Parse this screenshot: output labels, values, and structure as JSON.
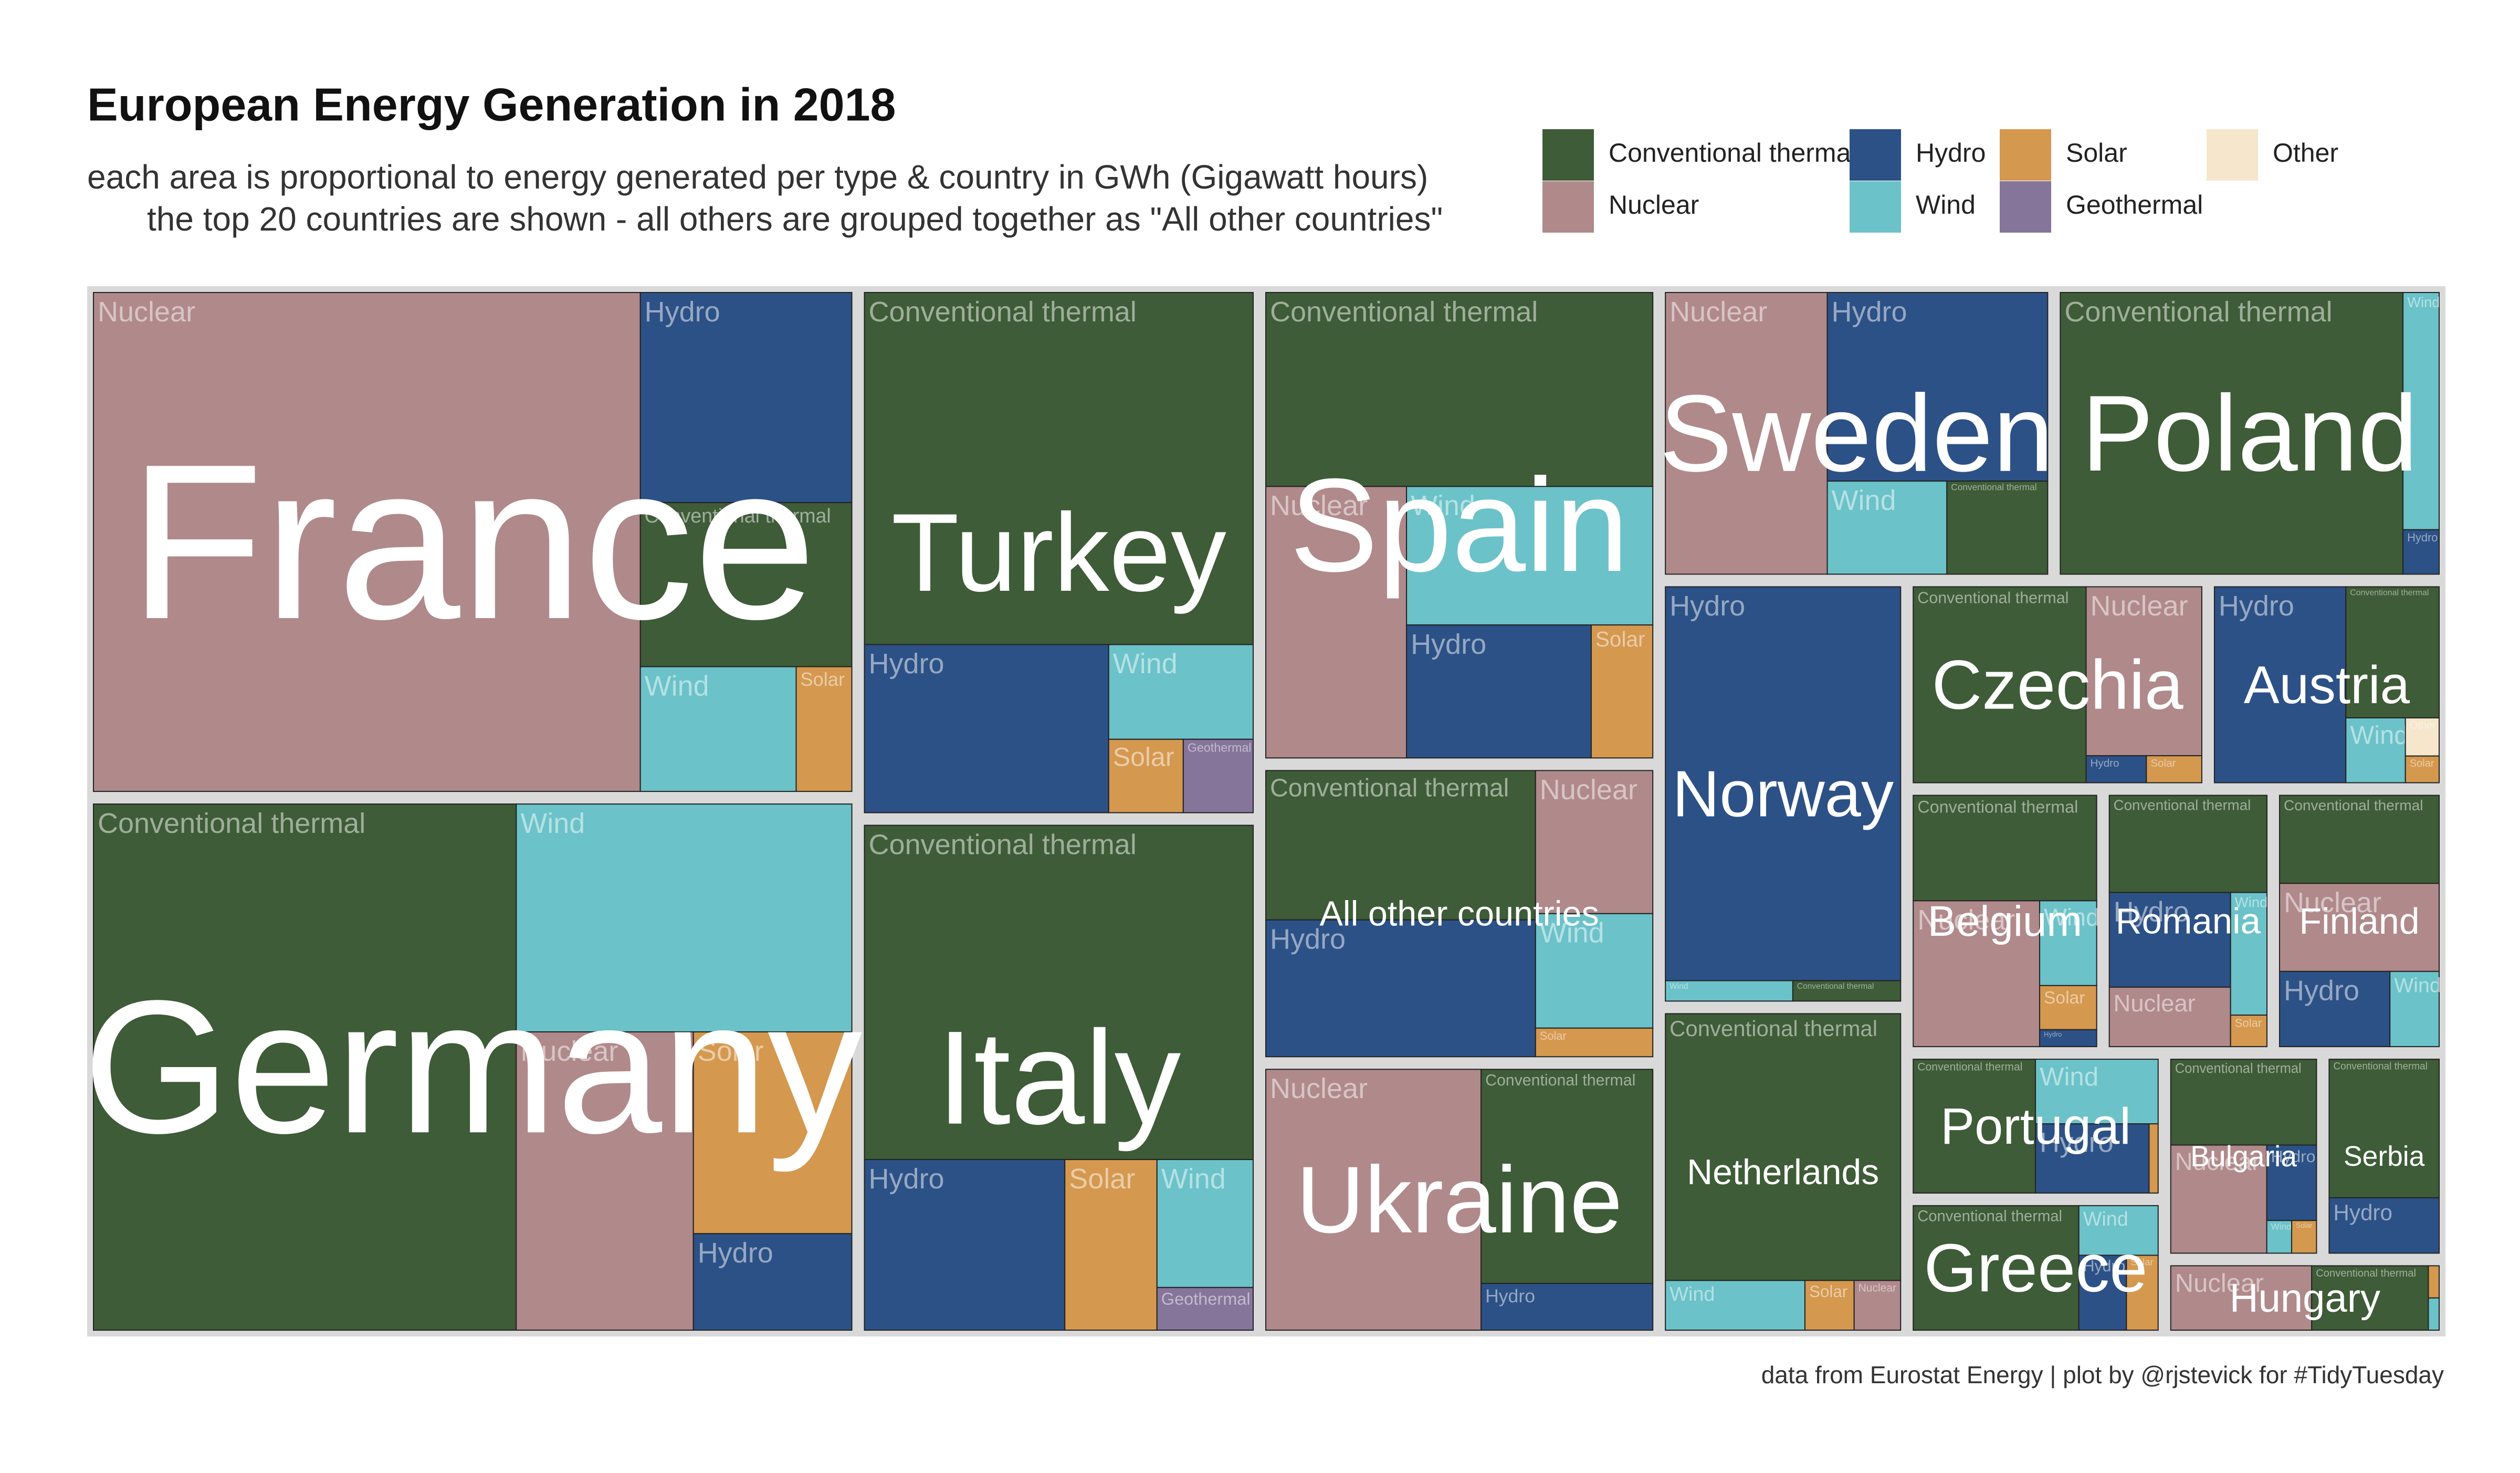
{
  "chart_data": {
    "type": "treemap",
    "title": "European Energy Generation in 2018",
    "subtitle": [
      "each area is proportional to energy generated per type & country in GWh (Gigawatt hours)",
      "the top 20 countries are shown - all others are grouped together as \"All other countries\""
    ],
    "caption": "data from Eurostat Energy | plot by @rjstevick for #TidyTuesday",
    "legend": [
      {
        "name": "Conventional thermal",
        "color": "#3e5c37"
      },
      {
        "name": "Nuclear",
        "color": "#b0898b"
      },
      {
        "name": "Hydro",
        "color": "#2c5186"
      },
      {
        "name": "Wind",
        "color": "#6bc2c9"
      },
      {
        "name": "Solar",
        "color": "#d4984f"
      },
      {
        "name": "Geothermal",
        "color": "#85759a"
      },
      {
        "name": "Other",
        "color": "#f5e6cc"
      }
    ],
    "groups": [
      {
        "name": "France",
        "children": [
          {
            "name": "Nuclear",
            "value": 393000
          },
          {
            "name": "Hydro",
            "value": 64000
          },
          {
            "name": "Conventional thermal",
            "value": 50000
          },
          {
            "name": "Wind",
            "value": 28000
          },
          {
            "name": "Solar",
            "value": 10000
          }
        ]
      },
      {
        "name": "Germany",
        "children": [
          {
            "name": "Conventional thermal",
            "value": 320000
          },
          {
            "name": "Wind",
            "value": 110000
          },
          {
            "name": "Nuclear",
            "value": 76000
          },
          {
            "name": "Solar",
            "value": 46000
          },
          {
            "name": "Hydro",
            "value": 22000
          }
        ]
      },
      {
        "name": "Turkey",
        "children": [
          {
            "name": "Conventional thermal",
            "value": 200000
          },
          {
            "name": "Hydro",
            "value": 60000
          },
          {
            "name": "Wind",
            "value": 20000
          },
          {
            "name": "Solar",
            "value": 8000
          },
          {
            "name": "Geothermal",
            "value": 7500
          }
        ]
      },
      {
        "name": "Italy",
        "children": [
          {
            "name": "Conventional thermal",
            "value": 190000
          },
          {
            "name": "Hydro",
            "value": 50000
          },
          {
            "name": "Solar",
            "value": 23000
          },
          {
            "name": "Wind",
            "value": 18000
          },
          {
            "name": "Geothermal",
            "value": 6000
          }
        ]
      },
      {
        "name": "Spain",
        "children": [
          {
            "name": "Conventional thermal",
            "value": 110000
          },
          {
            "name": "Nuclear",
            "value": 56000
          },
          {
            "name": "Wind",
            "value": 50000
          },
          {
            "name": "Hydro",
            "value": 36000
          },
          {
            "name": "Solar",
            "value": 12000
          }
        ]
      },
      {
        "name": "All other countries",
        "children": [
          {
            "name": "Conventional thermal",
            "value": 60000
          },
          {
            "name": "Hydro",
            "value": 55000
          },
          {
            "name": "Nuclear",
            "value": 25000
          },
          {
            "name": "Wind",
            "value": 20000
          },
          {
            "name": "Solar",
            "value": 5000
          }
        ]
      },
      {
        "name": "Ukraine",
        "children": [
          {
            "name": "Nuclear",
            "value": 84000
          },
          {
            "name": "Conventional thermal",
            "value": 55000
          },
          {
            "name": "Hydro",
            "value": 12000
          }
        ]
      },
      {
        "name": "Sweden",
        "children": [
          {
            "name": "Nuclear",
            "value": 68000
          },
          {
            "name": "Hydro",
            "value": 62000
          },
          {
            "name": "Wind",
            "value": 16600
          },
          {
            "name": "Conventional thermal",
            "value": 14000
          }
        ]
      },
      {
        "name": "Poland",
        "children": [
          {
            "name": "Conventional thermal",
            "value": 144000
          },
          {
            "name": "Wind",
            "value": 12800
          },
          {
            "name": "Hydro",
            "value": 2400
          }
        ]
      },
      {
        "name": "Norway",
        "children": [
          {
            "name": "Hydro",
            "value": 139000
          },
          {
            "name": "Wind",
            "value": 3900
          },
          {
            "name": "Conventional thermal",
            "value": 3300
          }
        ]
      },
      {
        "name": "Netherlands",
        "children": [
          {
            "name": "Conventional thermal",
            "value": 95000
          },
          {
            "name": "Wind",
            "value": 10500
          },
          {
            "name": "Solar",
            "value": 3700
          },
          {
            "name": "Nuclear",
            "value": 3500
          }
        ]
      },
      {
        "name": "Czechia",
        "children": [
          {
            "name": "Conventional thermal",
            "value": 52000
          },
          {
            "name": "Nuclear",
            "value": 30000
          },
          {
            "name": "Hydro",
            "value": 2500
          },
          {
            "name": "Solar",
            "value": 2300
          }
        ]
      },
      {
        "name": "Austria",
        "children": [
          {
            "name": "Hydro",
            "value": 40000
          },
          {
            "name": "Conventional thermal",
            "value": 19000
          },
          {
            "name": "Wind",
            "value": 6000
          },
          {
            "name": "Other",
            "value": 2000
          },
          {
            "name": "Solar",
            "value": 1400
          }
        ]
      },
      {
        "name": "Belgium",
        "children": [
          {
            "name": "Conventional thermal",
            "value": 30000
          },
          {
            "name": "Nuclear",
            "value": 28600
          },
          {
            "name": "Wind",
            "value": 7500
          },
          {
            "name": "Solar",
            "value": 3900
          },
          {
            "name": "Hydro",
            "value": 1500
          }
        ]
      },
      {
        "name": "Romania",
        "children": [
          {
            "name": "Conventional thermal",
            "value": 24000
          },
          {
            "name": "Hydro",
            "value": 18000
          },
          {
            "name": "Nuclear",
            "value": 11300
          },
          {
            "name": "Wind",
            "value": 7000
          },
          {
            "name": "Solar",
            "value": 1800
          }
        ]
      },
      {
        "name": "Finland",
        "children": [
          {
            "name": "Conventional thermal",
            "value": 22000
          },
          {
            "name": "Nuclear",
            "value": 22000
          },
          {
            "name": "Hydro",
            "value": 13000
          },
          {
            "name": "Wind",
            "value": 5800
          }
        ]
      },
      {
        "name": "Portugal",
        "children": [
          {
            "name": "Conventional thermal",
            "value": 26000
          },
          {
            "name": "Wind",
            "value": 12600
          },
          {
            "name": "Hydro",
            "value": 12500
          },
          {
            "name": "Solar",
            "value": 1000
          }
        ]
      },
      {
        "name": "Greece",
        "children": [
          {
            "name": "Conventional thermal",
            "value": 33000
          },
          {
            "name": "Wind",
            "value": 6300
          },
          {
            "name": "Hydro",
            "value": 5700
          },
          {
            "name": "Solar",
            "value": 3800
          }
        ]
      },
      {
        "name": "Bulgaria",
        "children": [
          {
            "name": "Conventional thermal",
            "value": 20000
          },
          {
            "name": "Nuclear",
            "value": 16600
          },
          {
            "name": "Hydro",
            "value": 6000
          },
          {
            "name": "Wind",
            "value": 1300
          },
          {
            "name": "Solar",
            "value": 1300
          }
        ]
      },
      {
        "name": "Serbia",
        "children": [
          {
            "name": "Conventional thermal",
            "value": 25000
          },
          {
            "name": "Hydro",
            "value": 10000
          }
        ]
      },
      {
        "name": "Hungary",
        "children": [
          {
            "name": "Nuclear",
            "value": 15700
          },
          {
            "name": "Conventional thermal",
            "value": 13000
          },
          {
            "name": "Solar",
            "value": 600
          },
          {
            "name": "Wind",
            "value": 600
          }
        ]
      }
    ]
  }
}
